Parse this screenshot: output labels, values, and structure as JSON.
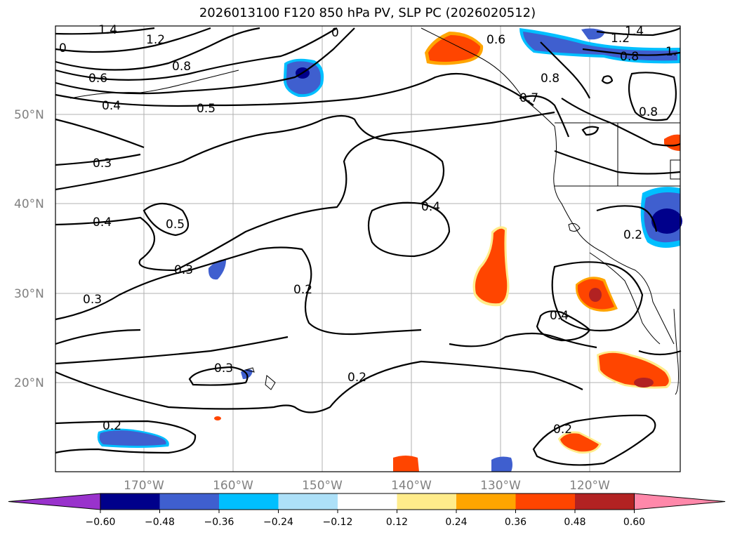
{
  "title": "2026013100 F120 850 hPa PV, SLP PC (2026020512)",
  "lat_labels": [
    "50°N",
    "40°N",
    "30°N",
    "20°N"
  ],
  "lon_labels": [
    "170°W",
    "160°W",
    "150°W",
    "140°W",
    "130°W",
    "120°W"
  ],
  "contour_labels": [
    "1.4",
    "1.2",
    "0.8",
    "0.6",
    "0.4",
    "0.5",
    "0.3",
    "0.4",
    "0.5",
    "0.3",
    "0.3",
    "0.2",
    "0.4",
    "0.4",
    "0.2",
    "0.3",
    "0.2",
    "0.2",
    "0.2",
    "0.6",
    "0.8",
    "0.7",
    "1.2",
    "1.4",
    "0.8",
    "1.",
    "0.8",
    "0.2",
    "0",
    "0"
  ],
  "colorbar": {
    "ticks": [
      "−0.60",
      "−0.48",
      "−0.36",
      "−0.24",
      "−0.12",
      "0.12",
      "0.24",
      "0.36",
      "0.48",
      "0.60"
    ],
    "colors": [
      "#9932cc",
      "#00008b",
      "#3f5fcf",
      "#00bfff",
      "#ade0f8",
      "#ffffff",
      "#ffec8b",
      "#ffa500",
      "#ff4500",
      "#b22222",
      "#ff88aa"
    ]
  }
}
